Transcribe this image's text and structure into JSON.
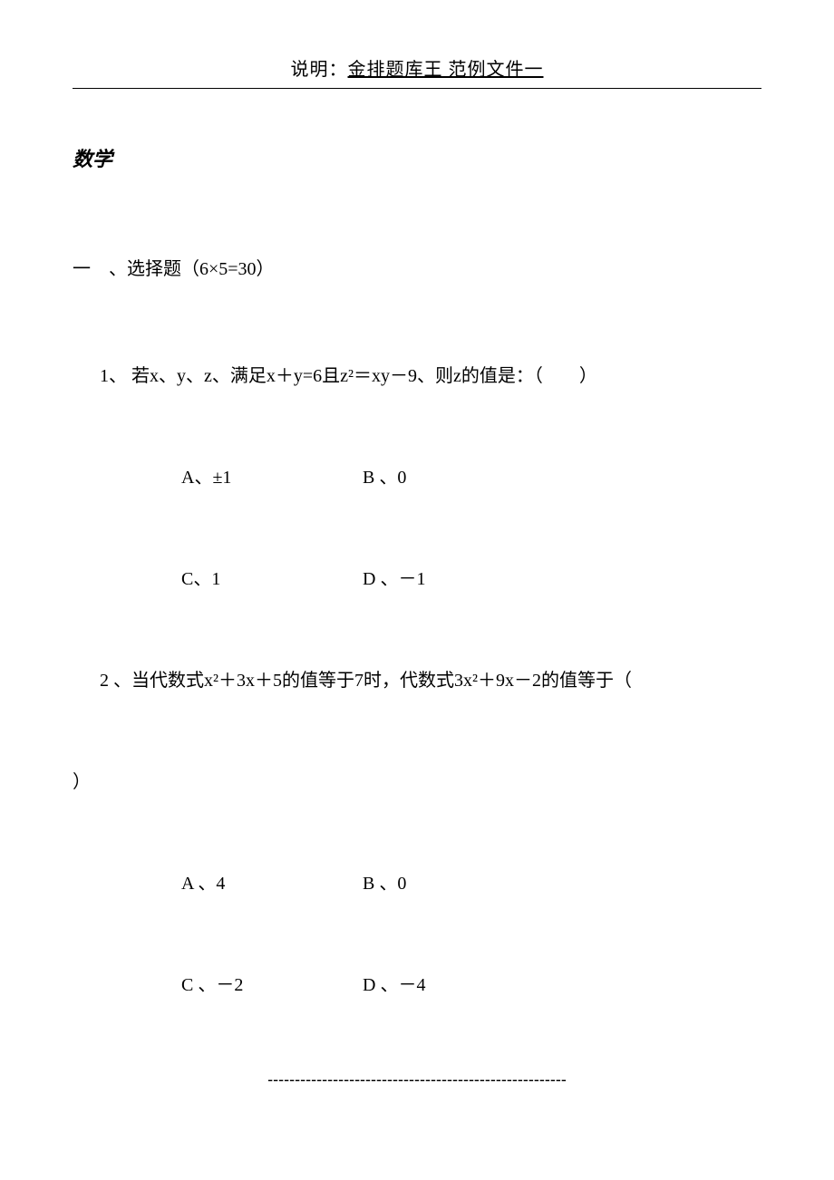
{
  "header": {
    "prefix": "说明：",
    "underlined": "金排题库王 范例文件一"
  },
  "subject": "数学",
  "section": {
    "label": "一　、选择题（6×5=30）"
  },
  "q1": {
    "stem": "1、 若x、y、z、满足x＋y=6且z²＝xy－9、则z的值是：（　　）",
    "optA": "A、±1",
    "optB": "B 、0",
    "optC": "C、1",
    "optD": "D 、－1"
  },
  "q2": {
    "stem": "2 、当代数式x²＋3x＋5的值等于7时，代数式3x²＋9x－2的值等于（",
    "closing": "）",
    "optA": "A 、4",
    "optB": "B 、0",
    "optC": "C 、－2",
    "optD": "D 、－4"
  },
  "footer": "-------------------------------------------------------"
}
